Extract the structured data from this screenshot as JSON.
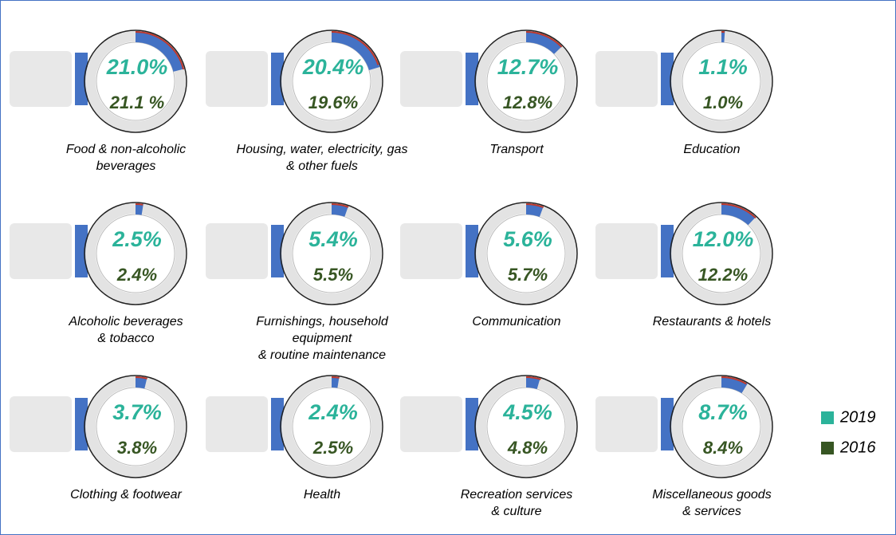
{
  "chart_data": {
    "type": "donut",
    "categories": [
      "Food & non-alcoholic\nbeverages",
      "Housing, water, electricity, gas\n& other fuels",
      "Transport",
      "Education",
      "Alcoholic beverages\n& tobacco",
      "Furnishings, household\nequipment\n& routine maintenance",
      "Communication",
      "Restaurants & hotels",
      "Clothing & footwear",
      "Health",
      "Recreation services\n& culture",
      "Miscellaneous goods\n& services"
    ],
    "series": [
      {
        "name": "2019",
        "color": "#2bb39a",
        "arc_color": "#4472c4",
        "values": [
          21.0,
          20.4,
          12.7,
          1.1,
          2.5,
          5.4,
          5.6,
          12.0,
          3.7,
          2.4,
          4.5,
          8.7
        ],
        "value_labels": [
          "21.0%",
          "20.4%",
          "12.7%",
          "1.1%",
          "2.5%",
          "5.4%",
          "5.6%",
          "12.0%",
          "3.7%",
          "2.4%",
          "4.5%",
          "8.7%"
        ]
      },
      {
        "name": "2016",
        "color": "#375623",
        "arc_color": "#c0392b",
        "values": [
          21.1,
          19.6,
          12.8,
          1.0,
          2.4,
          5.5,
          5.7,
          12.2,
          3.8,
          2.5,
          4.8,
          8.4
        ],
        "value_labels": [
          "21.1 %",
          "19.6%",
          "12.8%",
          "1.0%",
          "2.4%",
          "5.5%",
          "5.7%",
          "12.2%",
          "3.8%",
          "2.5%",
          "4.8%",
          "8.4%"
        ]
      }
    ],
    "legend": "right"
  }
}
